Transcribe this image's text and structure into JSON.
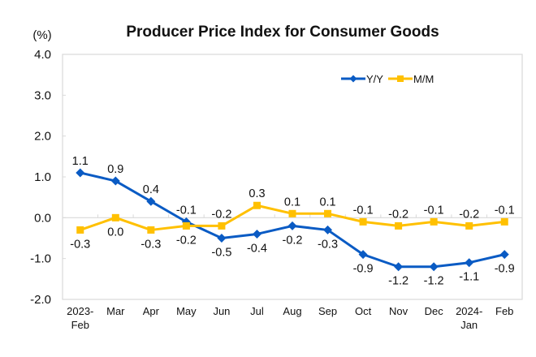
{
  "chart_data": {
    "type": "line",
    "title": "Producer Price Index for Consumer Goods",
    "ylabel": "(%)",
    "xlabel": "",
    "ylim": [
      -2.0,
      4.0
    ],
    "yticks": [
      "4.0",
      "3.0",
      "2.0",
      "1.0",
      "0.0",
      "-1.0",
      "-2.0"
    ],
    "ytick_values": [
      4,
      3,
      2,
      1,
      0,
      -1,
      -2
    ],
    "categories": [
      [
        "2023-",
        "Feb"
      ],
      [
        "Mar"
      ],
      [
        "Apr"
      ],
      [
        "May"
      ],
      [
        "Jun"
      ],
      [
        "Jul"
      ],
      [
        "Aug"
      ],
      [
        "Sep"
      ],
      [
        "Oct"
      ],
      [
        "Nov"
      ],
      [
        "Dec"
      ],
      [
        "2024-",
        "Jan"
      ],
      [
        "Feb"
      ]
    ],
    "legend_position": "top-right",
    "grid": false,
    "series": [
      {
        "name": "Y/Y",
        "color": "#0A5BC4",
        "marker": "diamond",
        "values": [
          1.1,
          0.9,
          0.4,
          -0.1,
          -0.5,
          -0.4,
          -0.2,
          -0.3,
          -0.9,
          -1.2,
          -1.2,
          -1.1,
          -0.9
        ],
        "labels": [
          "1.1",
          "0.9",
          "0.4",
          "-0.1",
          "-0.5",
          "-0.4",
          "-0.2",
          "-0.3",
          "-0.9",
          "-1.2",
          "-1.2",
          "-1.1",
          "-0.9"
        ],
        "label_side": [
          "above",
          "above",
          "above",
          "above",
          "below",
          "below",
          "below",
          "below",
          "below",
          "below",
          "below",
          "below",
          "below"
        ]
      },
      {
        "name": "M/M",
        "color": "#FFC000",
        "marker": "square",
        "values": [
          -0.3,
          0.0,
          -0.3,
          -0.2,
          -0.2,
          0.3,
          0.1,
          0.1,
          -0.1,
          -0.2,
          -0.1,
          -0.2,
          -0.1
        ],
        "labels": [
          "-0.3",
          "0.0",
          "-0.3",
          "-0.2",
          "-0.2",
          "0.3",
          "0.1",
          "0.1",
          "-0.1",
          "-0.2",
          "-0.1",
          "-0.2",
          "-0.1"
        ],
        "label_side": [
          "below",
          "below",
          "below",
          "below",
          "above",
          "above",
          "above",
          "above",
          "above",
          "above",
          "above",
          "above",
          "above"
        ]
      }
    ]
  }
}
